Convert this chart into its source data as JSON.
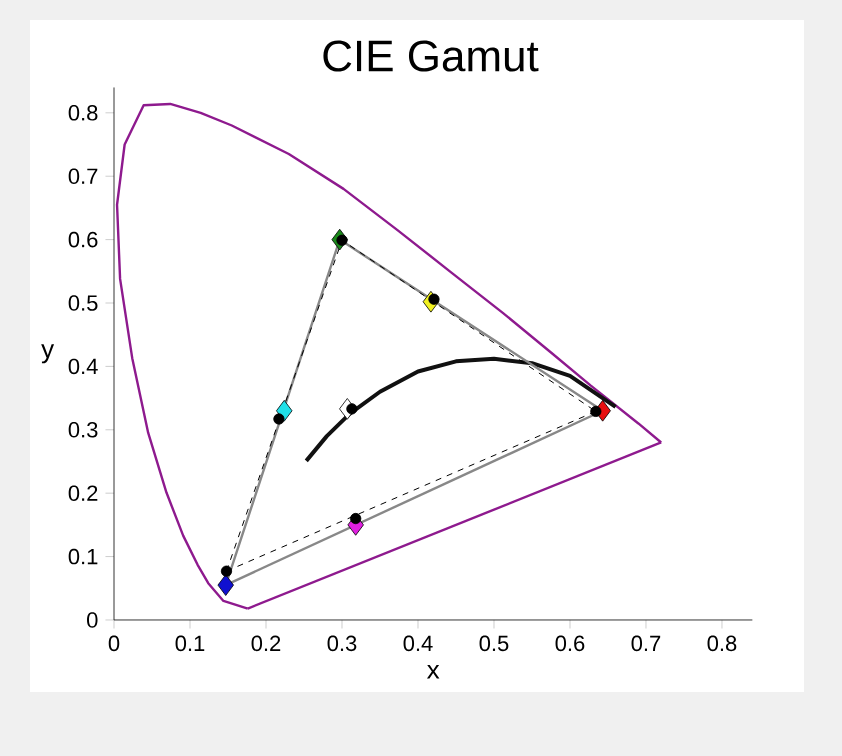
{
  "chart_data": {
    "type": "line",
    "title": "CIE Gamut",
    "xlabel": "x",
    "ylabel": "y",
    "xlim": [
      0,
      0.84
    ],
    "ylim": [
      0,
      0.84
    ],
    "xticks": [
      0,
      0.1,
      0.2,
      0.3,
      0.4,
      0.5,
      0.6,
      0.7,
      0.8
    ],
    "yticks": [
      0,
      0.1,
      0.2,
      0.3,
      0.4,
      0.5,
      0.6,
      0.7,
      0.8
    ],
    "grid": false,
    "series": [
      {
        "type": "line",
        "color": "#8e1a8e",
        "marker": "none",
        "line_style": "solid",
        "x": [
          0.176,
          0.144,
          0.124,
          0.11,
          0.091,
          0.069,
          0.045,
          0.024,
          0.008,
          0.004,
          0.014,
          0.039,
          0.074,
          0.114,
          0.155,
          0.23,
          0.302,
          0.373,
          0.444,
          0.512,
          0.575,
          0.627,
          0.69,
          0.72
        ],
        "values": [
          0.018,
          0.03,
          0.058,
          0.087,
          0.133,
          0.201,
          0.295,
          0.413,
          0.538,
          0.655,
          0.75,
          0.812,
          0.814,
          0.8,
          0.78,
          0.735,
          0.68,
          0.615,
          0.548,
          0.484,
          0.422,
          0.37,
          0.31,
          0.28
        ]
      },
      {
        "type": "line",
        "color": "#8e1a8e",
        "marker": "none",
        "line_style": "solid",
        "x": [
          0.176,
          0.72
        ],
        "values": [
          0.018,
          0.28
        ]
      },
      {
        "type": "line",
        "color": "#111111",
        "marker": "none",
        "line_style": "solid",
        "x": [
          0.253,
          0.28,
          0.31,
          0.35,
          0.4,
          0.45,
          0.5,
          0.55,
          0.6,
          0.66
        ],
        "values": [
          0.251,
          0.29,
          0.325,
          0.36,
          0.392,
          0.408,
          0.412,
          0.405,
          0.385,
          0.336
        ]
      },
      {
        "type": "line",
        "color": "#888888",
        "marker": "none",
        "line_style": "solid",
        "x": [
          0.147,
          0.297,
          0.643
        ],
        "values": [
          0.055,
          0.6,
          0.33
        ]
      },
      {
        "type": "line",
        "color": "#888888",
        "marker": "none",
        "line_style": "solid",
        "x": [
          0.147,
          0.643
        ],
        "values": [
          0.055,
          0.33
        ]
      },
      {
        "type": "scatter",
        "marker": "diamond",
        "x": [
          0.643,
          0.297,
          0.147,
          0.224,
          0.318,
          0.417,
          0.307
        ],
        "values": [
          0.33,
          0.6,
          0.055,
          0.33,
          0.15,
          0.502,
          0.333
        ],
        "colors": [
          "#e81010",
          "#1a8a1a",
          "#1010d0",
          "#20e0e8",
          "#e020e0",
          "#f0f020",
          "#ffffff"
        ]
      },
      {
        "type": "line",
        "color": "#000000",
        "marker": "none",
        "line_style": "dashed",
        "x": [
          0.148,
          0.3,
          0.634
        ],
        "values": [
          0.077,
          0.599,
          0.329
        ]
      },
      {
        "type": "line",
        "color": "#000000",
        "marker": "none",
        "line_style": "dashed",
        "x": [
          0.148,
          0.634
        ],
        "values": [
          0.077,
          0.329
        ]
      },
      {
        "type": "scatter",
        "color": "#000000",
        "marker": "circle",
        "x": [
          0.634,
          0.3,
          0.148,
          0.217,
          0.318,
          0.421,
          0.313
        ],
        "values": [
          0.329,
          0.599,
          0.077,
          0.317,
          0.16,
          0.506,
          0.333
        ]
      }
    ]
  }
}
